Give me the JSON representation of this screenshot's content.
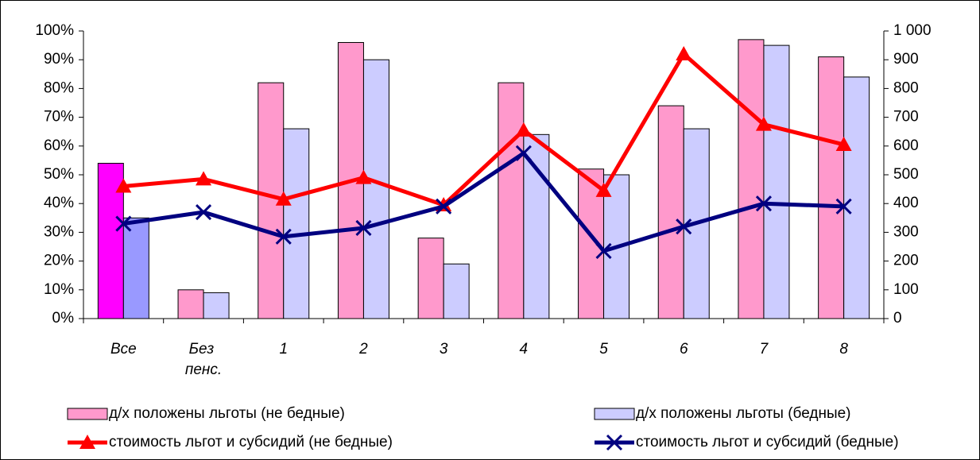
{
  "chart_data": {
    "type": "bar",
    "categories": [
      "Все",
      "Без пенс.",
      "1",
      "2",
      "3",
      "4",
      "5",
      "6",
      "7",
      "8"
    ],
    "series": [
      {
        "name": "д/х положены льготы (не бедные)",
        "type": "bar",
        "color": "#ff99cc",
        "colors": [
          "#ff00ff",
          "#ff99cc",
          "#ff99cc",
          "#ff99cc",
          "#ff99cc",
          "#ff99cc",
          "#ff99cc",
          "#ff99cc",
          "#ff99cc",
          "#ff99cc"
        ],
        "values": [
          54,
          10,
          82,
          96,
          28,
          82,
          52,
          74,
          97,
          91
        ]
      },
      {
        "name": "д/х положены льготы (бедные)",
        "type": "bar",
        "color": "#ccccff",
        "colors": [
          "#9999ff",
          "#ccccff",
          "#ccccff",
          "#ccccff",
          "#ccccff",
          "#ccccff",
          "#ccccff",
          "#ccccff",
          "#ccccff",
          "#ccccff"
        ],
        "values": [
          35,
          9,
          66,
          90,
          19,
          64,
          50,
          66,
          95,
          84
        ]
      },
      {
        "name": "стоимость льгот и субсидий (не бедные)",
        "type": "line",
        "marker": "triangle",
        "axis": "y2",
        "color": "#ff0000",
        "values": [
          460,
          485,
          415,
          490,
          395,
          655,
          445,
          920,
          675,
          605
        ]
      },
      {
        "name": "стоимость льгот и субсидий (бедные)",
        "type": "line",
        "marker": "x",
        "axis": "y2",
        "color": "#000080",
        "values": [
          330,
          370,
          285,
          315,
          390,
          575,
          235,
          320,
          400,
          390
        ]
      }
    ],
    "ylim": [
      0,
      100
    ],
    "yticks": [
      {
        "value": 0,
        "label": "0%"
      },
      {
        "value": 10,
        "label": "10%"
      },
      {
        "value": 20,
        "label": "20%"
      },
      {
        "value": 30,
        "label": "30%"
      },
      {
        "value": 40,
        "label": "40%"
      },
      {
        "value": 50,
        "label": "50%"
      },
      {
        "value": 60,
        "label": "60%"
      },
      {
        "value": 70,
        "label": "70%"
      },
      {
        "value": 80,
        "label": "80%"
      },
      {
        "value": 90,
        "label": "90%"
      },
      {
        "value": 100,
        "label": "100%"
      }
    ],
    "y2lim": [
      0,
      1000
    ],
    "y2ticks": [
      0,
      100,
      200,
      300,
      400,
      500,
      600,
      700,
      800,
      900,
      {
        "value": 1000,
        "label": "1 000"
      }
    ],
    "grid": false
  }
}
